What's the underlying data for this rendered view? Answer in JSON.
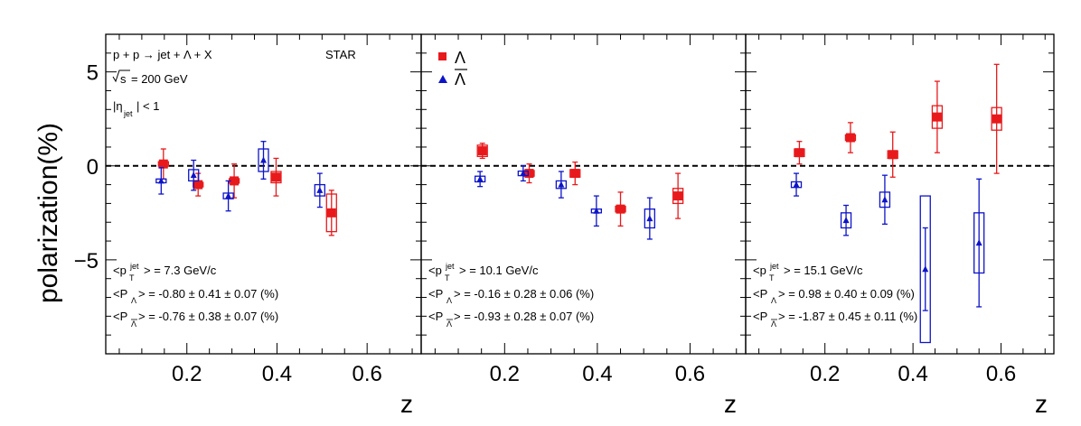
{
  "chart_data": {
    "type": "scatter",
    "y_axis": {
      "label": "polarization(%)",
      "ticks": [
        "5",
        "0",
        "−5"
      ],
      "ylim": [
        -10,
        7
      ]
    },
    "x_axis": {
      "label": "z",
      "ticks": [
        "0.2",
        "0.4",
        "0.6"
      ],
      "xlim": [
        0.02,
        0.72
      ]
    },
    "reference_line": {
      "y": 0,
      "style": "dashed"
    },
    "legend": {
      "placement": "top-left of middle panel",
      "entries": [
        {
          "label": "Λ",
          "marker": "square",
          "color": "#e8191b"
        },
        {
          "label": "Λ̅",
          "marker": "triangle",
          "color": "#0d14c8"
        }
      ]
    },
    "colors": {
      "lambda": "#e8191b",
      "antilambda": "#0d14c8"
    },
    "header": {
      "reaction": "p + p → jet + Λ + X",
      "experiment": "STAR",
      "sqrt_s": "= 200 GeV",
      "eta_cut": "| < 1"
    },
    "panels": [
      {
        "pt_line": "> = 7.3 GeV/c",
        "pl_line": "> = -0.80 ± 0.41 ± 0.07 (%)",
        "pa_line": "> = -0.76 ± 0.38 ± 0.07 (%)",
        "series": [
          {
            "name": "Λ",
            "points": [
              {
                "x": 0.148,
                "y": 0.1,
                "stat": 0.8,
                "sys": 0.12
              },
              {
                "x": 0.225,
                "y": -1.0,
                "stat": 0.6,
                "sys": 0.12
              },
              {
                "x": 0.305,
                "y": -0.8,
                "stat": 0.9,
                "sys": 0.12
              },
              {
                "x": 0.398,
                "y": -0.6,
                "stat": 1.0,
                "sys": 0.3
              },
              {
                "x": 0.521,
                "y": -2.5,
                "stat": 1.2,
                "sys": 1.0
              }
            ]
          },
          {
            "name": "Λ̅",
            "points": [
              {
                "x": 0.143,
                "y": -0.8,
                "stat": 0.7,
                "sys": 0.1
              },
              {
                "x": 0.215,
                "y": -0.5,
                "stat": 0.8,
                "sys": 0.3
              },
              {
                "x": 0.292,
                "y": -1.6,
                "stat": 0.8,
                "sys": 0.15
              },
              {
                "x": 0.37,
                "y": 0.3,
                "stat": 1.0,
                "sys": 0.6
              },
              {
                "x": 0.495,
                "y": -1.3,
                "stat": 0.9,
                "sys": 0.3
              }
            ]
          }
        ]
      },
      {
        "pt_line": "> = 10.1 GeV/c",
        "pl_line": "> = -0.16 ± 0.28 ± 0.06 (%)",
        "pa_line": "> = -0.93 ± 0.28 ± 0.07 (%)",
        "series": [
          {
            "name": "Λ",
            "points": [
              {
                "x": 0.152,
                "y": 0.8,
                "stat": 0.4,
                "sys": 0.3
              },
              {
                "x": 0.253,
                "y": -0.4,
                "stat": 0.5,
                "sys": 0.15
              },
              {
                "x": 0.352,
                "y": -0.4,
                "stat": 0.6,
                "sys": 0.2
              },
              {
                "x": 0.45,
                "y": -2.3,
                "stat": 0.9,
                "sys": 0.15
              },
              {
                "x": 0.574,
                "y": -1.6,
                "stat": 1.2,
                "sys": 0.4
              }
            ]
          },
          {
            "name": "Λ̅",
            "points": [
              {
                "x": 0.147,
                "y": -0.7,
                "stat": 0.4,
                "sys": 0.15
              },
              {
                "x": 0.24,
                "y": -0.4,
                "stat": 0.4,
                "sys": 0.12
              },
              {
                "x": 0.322,
                "y": -1.0,
                "stat": 0.7,
                "sys": 0.2
              },
              {
                "x": 0.398,
                "y": -2.4,
                "stat": 0.8,
                "sys": 0.1
              },
              {
                "x": 0.513,
                "y": -2.8,
                "stat": 1.1,
                "sys": 0.5
              }
            ]
          }
        ]
      },
      {
        "pt_line": "> = 15.1 GeV/c",
        "pl_line": "> = 0.98 ± 0.40 ± 0.09 (%)",
        "pa_line": "> = -1.87 ± 0.45 ± 0.11 (%)",
        "series": [
          {
            "name": "Λ",
            "points": [
              {
                "x": 0.142,
                "y": 0.7,
                "stat": 0.6,
                "sys": 0.2
              },
              {
                "x": 0.258,
                "y": 1.5,
                "stat": 0.8,
                "sys": 0.15
              },
              {
                "x": 0.354,
                "y": 0.6,
                "stat": 1.2,
                "sys": 0.2
              },
              {
                "x": 0.455,
                "y": 2.6,
                "stat": 1.9,
                "sys": 0.6
              },
              {
                "x": 0.59,
                "y": 2.5,
                "stat": 2.9,
                "sys": 0.6
              }
            ]
          },
          {
            "name": "Λ̅",
            "points": [
              {
                "x": 0.135,
                "y": -1.0,
                "stat": 0.6,
                "sys": 0.15
              },
              {
                "x": 0.248,
                "y": -2.9,
                "stat": 0.8,
                "sys": 0.4
              },
              {
                "x": 0.336,
                "y": -1.8,
                "stat": 1.3,
                "sys": 0.4
              },
              {
                "x": 0.428,
                "y": -5.5,
                "stat": 2.2,
                "sys": 3.9
              },
              {
                "x": 0.55,
                "y": -4.1,
                "stat": 3.4,
                "sys": 1.6
              }
            ]
          }
        ]
      }
    ]
  }
}
